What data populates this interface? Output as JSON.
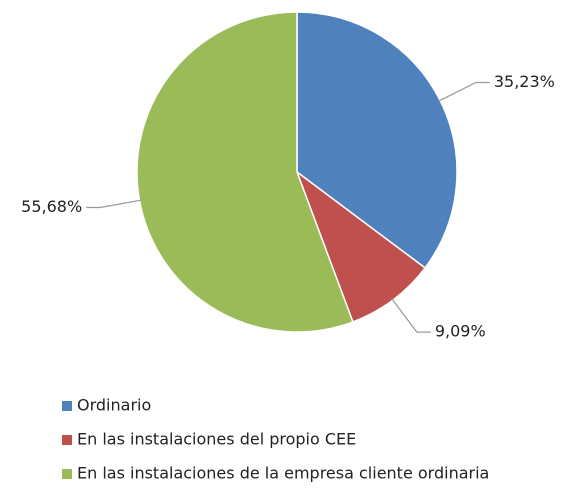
{
  "chart_data": {
    "type": "pie",
    "categories": [
      "Ordinario",
      "En las instalaciones del propio CEE",
      "En las instalaciones de la empresa cliente ordinaria"
    ],
    "values": [
      35.23,
      9.09,
      55.68
    ],
    "value_labels": [
      "35,23%",
      "9,09%",
      "55,68%"
    ],
    "colors": [
      "#4f81bd",
      "#c0504d",
      "#9bbb59"
    ],
    "legend": "bottom"
  }
}
